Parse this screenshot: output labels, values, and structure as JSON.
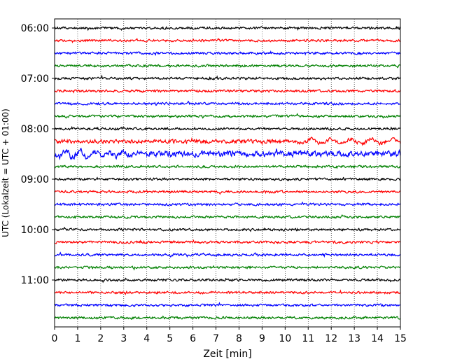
{
  "chart_data": {
    "type": "line",
    "title": "",
    "xlabel": "Zeit  [min]",
    "ylabel": "UTC (Lokalzeit = UTC + 01:00)",
    "xlim": [
      0,
      15
    ],
    "x_ticks": [
      "0",
      "1",
      "2",
      "3",
      "4",
      "5",
      "6",
      "7",
      "8",
      "9",
      "10",
      "11",
      "12",
      "13",
      "14",
      "15"
    ],
    "y_ticks": [
      "06:00",
      "07:00",
      "08:00",
      "09:00",
      "10:00",
      "11:00"
    ],
    "grid": "vertical dotted",
    "traces_per_hour": 4,
    "trace_minutes": 15,
    "trace_start_times": [
      "06:00",
      "06:15",
      "06:30",
      "06:45",
      "07:00",
      "07:15",
      "07:30",
      "07:45",
      "08:00",
      "08:15",
      "08:30",
      "08:45",
      "09:00",
      "09:15",
      "09:30",
      "09:45",
      "10:00",
      "10:15",
      "10:30",
      "10:45",
      "11:00",
      "11:15",
      "11:30",
      "11:45"
    ],
    "trace_colors": [
      "#000000",
      "#ff0000",
      "#0000ff",
      "#008000"
    ],
    "trace_amplitude": [
      1,
      1,
      1,
      1,
      1,
      1,
      1,
      1,
      1,
      1.6,
      2.4,
      1,
      1,
      1,
      1,
      1,
      1,
      1,
      1,
      1,
      1,
      1,
      1,
      1
    ]
  }
}
